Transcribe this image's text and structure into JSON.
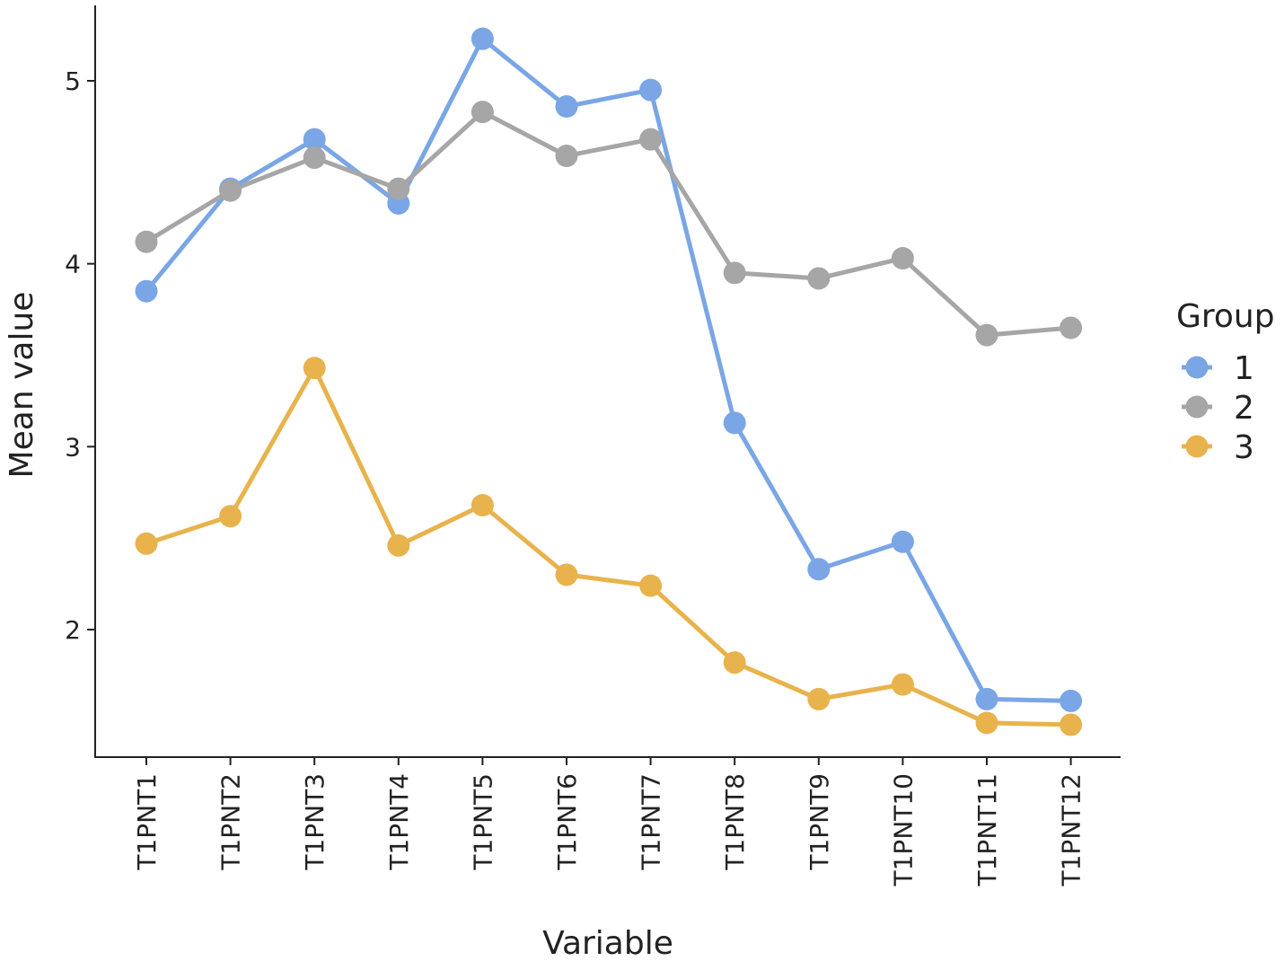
{
  "chart_data": {
    "type": "line",
    "xlabel": "Variable",
    "ylabel": "Mean value",
    "categories": [
      "T1PNT1",
      "T1PNT2",
      "T1PNT3",
      "T1PNT4",
      "T1PNT5",
      "T1PNT6",
      "T1PNT7",
      "T1PNT8",
      "T1PNT9",
      "T1PNT10",
      "T1PNT11",
      "T1PNT12"
    ],
    "ylim": [
      1.35,
      5.42
    ],
    "yticks": [
      2,
      3,
      4,
      5
    ],
    "ytick_labels": [
      "2",
      "3",
      "4",
      "5"
    ],
    "grid": false,
    "legend": {
      "title": "Group",
      "placement": "right"
    },
    "series": [
      {
        "name": "1",
        "color": "#7aa6e6",
        "values": [
          3.85,
          4.41,
          4.68,
          4.33,
          5.23,
          4.86,
          4.95,
          3.13,
          2.33,
          2.48,
          1.62,
          1.61
        ]
      },
      {
        "name": "2",
        "color": "#a6a6a6",
        "values": [
          4.12,
          4.4,
          4.58,
          4.41,
          4.83,
          4.59,
          4.68,
          3.95,
          3.92,
          4.03,
          3.61,
          3.65
        ]
      },
      {
        "name": "3",
        "color": "#e8b34d",
        "values": [
          2.47,
          2.62,
          3.43,
          2.46,
          2.68,
          2.3,
          2.24,
          1.82,
          1.62,
          1.7,
          1.49,
          1.48
        ]
      }
    ]
  }
}
